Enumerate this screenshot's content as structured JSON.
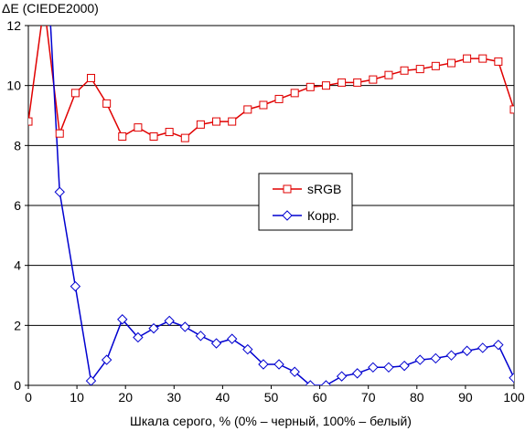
{
  "chart_data": {
    "type": "line",
    "title": "",
    "ylabel": "ΔE (CIEDE2000)",
    "xlabel": "Шкала серого, % (0% – черный, 100% – белый)",
    "xlim": [
      0,
      100
    ],
    "ylim": [
      0,
      12
    ],
    "xticks": [
      0,
      10,
      20,
      30,
      40,
      50,
      60,
      70,
      80,
      90,
      100
    ],
    "yticks": [
      0,
      2,
      4,
      6,
      8,
      10,
      12
    ],
    "grid": "horizontal",
    "legend_position": "center-right",
    "series": [
      {
        "name": "sRGB",
        "color": "#e00000",
        "marker": "square",
        "x": [
          0,
          3.23,
          6.45,
          9.68,
          12.9,
          16.13,
          19.35,
          22.58,
          25.81,
          29.03,
          32.26,
          35.48,
          38.71,
          41.94,
          45.16,
          48.39,
          51.61,
          54.84,
          58.06,
          61.29,
          64.52,
          67.74,
          70.97,
          74.19,
          77.42,
          80.65,
          83.87,
          87.1,
          90.32,
          93.55,
          96.77,
          100
        ],
        "values": [
          8.8,
          12.7,
          8.4,
          9.75,
          10.25,
          9.4,
          8.3,
          8.6,
          8.3,
          8.45,
          8.25,
          8.7,
          8.8,
          8.8,
          9.2,
          9.35,
          9.55,
          9.75,
          9.95,
          10.0,
          10.1,
          10.1,
          10.2,
          10.35,
          10.5,
          10.55,
          10.65,
          10.75,
          10.9,
          10.9,
          10.8,
          9.2
        ]
      },
      {
        "name": "Корр.",
        "color": "#0000d0",
        "marker": "diamond",
        "x": [
          3.23,
          6.45,
          9.68,
          12.9,
          16.13,
          19.35,
          22.58,
          25.81,
          29.03,
          32.26,
          35.48,
          38.71,
          41.94,
          45.16,
          48.39,
          51.61,
          54.84,
          58.06,
          61.29,
          64.52,
          67.74,
          70.97,
          74.19,
          77.42,
          80.65,
          83.87,
          87.1,
          90.32,
          93.55,
          96.77,
          100
        ],
        "values": [
          16.0,
          6.45,
          3.3,
          0.15,
          0.85,
          2.2,
          1.6,
          1.9,
          2.15,
          1.95,
          1.65,
          1.4,
          1.55,
          1.2,
          0.7,
          0.7,
          0.45,
          0.0,
          0.0,
          0.3,
          0.4,
          0.6,
          0.6,
          0.65,
          0.85,
          0.9,
          1.0,
          1.15,
          1.25,
          1.35,
          0.25
        ]
      }
    ]
  }
}
